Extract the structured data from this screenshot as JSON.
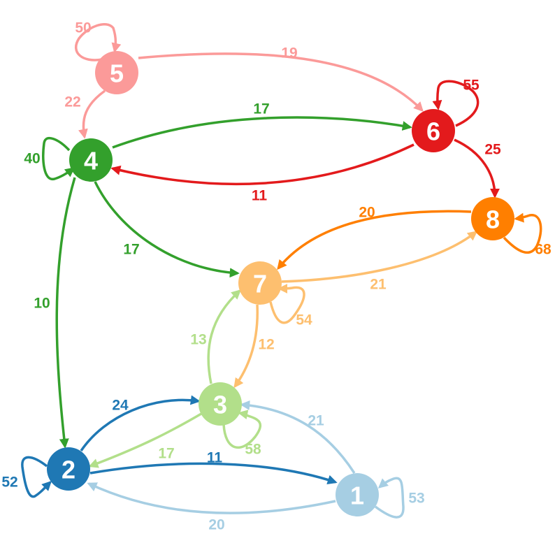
{
  "colors": {
    "n1": "#a6cee3",
    "n2": "#1f78b4",
    "n3": "#b2df8a",
    "n4": "#33a02c",
    "n5": "#fb9a99",
    "n6": "#e31a1c",
    "n7": "#fdbf6f",
    "n8": "#ff7f00"
  },
  "nodes": [
    {
      "id": "1",
      "label": "1",
      "color": "n1"
    },
    {
      "id": "2",
      "label": "2",
      "color": "n2"
    },
    {
      "id": "3",
      "label": "3",
      "color": "n3"
    },
    {
      "id": "4",
      "label": "4",
      "color": "n4"
    },
    {
      "id": "5",
      "label": "5",
      "color": "n5"
    },
    {
      "id": "6",
      "label": "6",
      "color": "n6"
    },
    {
      "id": "7",
      "label": "7",
      "color": "n7"
    },
    {
      "id": "8",
      "label": "8",
      "color": "n8"
    }
  ],
  "edges": [
    {
      "from": "5",
      "to": "5",
      "weight": "50"
    },
    {
      "from": "5",
      "to": "6",
      "weight": "19"
    },
    {
      "from": "5",
      "to": "4",
      "weight": "22"
    },
    {
      "from": "6",
      "to": "6",
      "weight": "55"
    },
    {
      "from": "6",
      "to": "4",
      "weight": "11"
    },
    {
      "from": "6",
      "to": "8",
      "weight": "25"
    },
    {
      "from": "4",
      "to": "4",
      "weight": "40"
    },
    {
      "from": "4",
      "to": "6",
      "weight": "17"
    },
    {
      "from": "4",
      "to": "7",
      "weight": "17"
    },
    {
      "from": "4",
      "to": "2",
      "weight": "10"
    },
    {
      "from": "8",
      "to": "8",
      "weight": "68"
    },
    {
      "from": "8",
      "to": "7",
      "weight": "20"
    },
    {
      "from": "7",
      "to": "8",
      "weight": "21"
    },
    {
      "from": "7",
      "to": "7",
      "weight": "54"
    },
    {
      "from": "7",
      "to": "3",
      "weight": "12"
    },
    {
      "from": "3",
      "to": "7",
      "weight": "13"
    },
    {
      "from": "3",
      "to": "3",
      "weight": "58"
    },
    {
      "from": "3",
      "to": "2",
      "weight": "17"
    },
    {
      "from": "2",
      "to": "3",
      "weight": "24"
    },
    {
      "from": "2",
      "to": "2",
      "weight": "52"
    },
    {
      "from": "2",
      "to": "1",
      "weight": "11"
    },
    {
      "from": "1",
      "to": "3",
      "weight": "21"
    },
    {
      "from": "1",
      "to": "1",
      "weight": "53"
    },
    {
      "from": "1",
      "to": "2",
      "weight": "20"
    }
  ]
}
